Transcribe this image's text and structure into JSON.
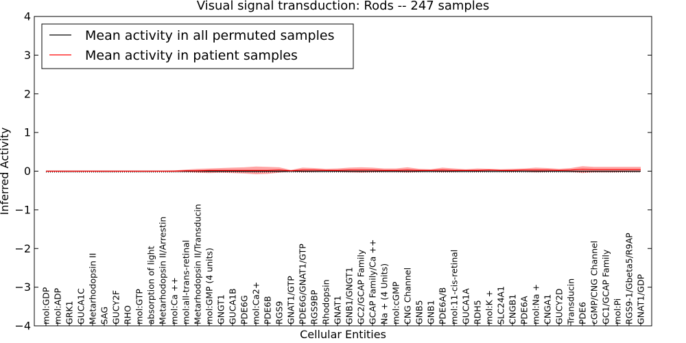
{
  "chart_data": {
    "type": "line",
    "title": "Visual signal transduction: Rods -- 247 samples",
    "xlabel": "Cellular Entities",
    "ylabel": "Inferred Activity",
    "ylim": [
      -4,
      4
    ],
    "yticks": [
      -4,
      -3,
      -2,
      -1,
      0,
      1,
      2,
      3,
      4
    ],
    "ytick_labels": [
      "−4",
      "−3",
      "−2",
      "−1",
      "0",
      "1",
      "2",
      "3",
      "4"
    ],
    "legend_position": "top-left",
    "categories": [
      "mol:GDP",
      "mol:ADP",
      "GRK1",
      "GUCA1C",
      "Metarhodopsin II",
      "SAG",
      "GUCY2F",
      "RHO",
      "mol:GTP",
      "absorption of light",
      "Metarhodopsin II/Arrestin",
      "mol:Ca ++",
      "mol:all-trans-retinal",
      "Metarhodopsin II/Transducin",
      "mol:GMP (4 units)",
      "GNGT1",
      "GUCA1B",
      "PDE6G",
      "mol:Ca2+",
      "PDE6B",
      "RGS9",
      "GNAT1/GTP",
      "PDE6G/GNAT1/GTP",
      "RGS9BP",
      "Rhodopsin",
      "GNAT1",
      "GNB1/GNGT1",
      "GC2/GCAP Family",
      "GCAP Family/Ca ++",
      "Na + (4 Units)",
      "mol:cGMP",
      "CNG Channel",
      "GNB5",
      "GNB1",
      "PDE6A/B",
      "mol:11-cis-retinal",
      "GUCA1A",
      "RDH5",
      "mol:K +",
      "SLC24A1",
      "CNGB1",
      "PDE6A",
      "mol:Na +",
      "CNGA1",
      "GUCY2D",
      "Transducin",
      "PDE6",
      "cGMP/CNG Channel",
      "GC1/GCAP Family",
      "mol:Pi",
      "RGS9-1/Gbeta5/R9AP",
      "GNAT1/GDP"
    ],
    "series": [
      {
        "name": "Mean activity in all permuted samples",
        "color": "#000000",
        "style": "solid",
        "values": [
          0.0,
          0.0,
          0.0,
          0.0,
          0.0,
          0.0,
          0.0,
          0.0,
          0.0,
          0.0,
          0.0,
          0.0,
          0.0,
          0.0,
          0.0,
          0.0,
          0.0,
          0.0,
          0.0,
          0.0,
          0.0,
          0.0,
          0.0,
          0.0,
          0.0,
          0.0,
          0.0,
          0.0,
          0.0,
          0.0,
          0.0,
          0.0,
          0.0,
          0.0,
          0.0,
          0.0,
          0.0,
          0.0,
          0.0,
          0.0,
          0.0,
          0.0,
          0.0,
          0.0,
          0.0,
          0.0,
          0.0,
          0.0,
          0.0,
          0.0,
          0.0,
          0.0
        ]
      },
      {
        "name": "Mean activity in patient samples",
        "color": "#ff0000",
        "style": "solid",
        "values": [
          0.0,
          0.0,
          0.0,
          0.0,
          0.0,
          0.0,
          0.0,
          0.0,
          0.0,
          0.0,
          0.0,
          0.0,
          0.01,
          0.01,
          0.02,
          0.02,
          0.02,
          0.02,
          0.02,
          0.02,
          0.03,
          0.01,
          0.03,
          0.03,
          0.02,
          0.02,
          0.03,
          0.03,
          0.03,
          0.02,
          0.02,
          0.03,
          0.02,
          0.02,
          0.03,
          0.02,
          0.02,
          0.02,
          0.03,
          0.02,
          0.02,
          0.03,
          0.03,
          0.03,
          0.02,
          0.03,
          0.05,
          0.04,
          0.04,
          0.04,
          0.04,
          0.04
        ],
        "band_upper": [
          0.01,
          0.01,
          0.01,
          0.01,
          0.01,
          0.01,
          0.01,
          0.01,
          0.01,
          0.01,
          0.01,
          0.02,
          0.04,
          0.06,
          0.07,
          0.08,
          0.09,
          0.1,
          0.12,
          0.11,
          0.1,
          0.03,
          0.09,
          0.08,
          0.06,
          0.07,
          0.09,
          0.1,
          0.09,
          0.07,
          0.07,
          0.1,
          0.06,
          0.05,
          0.09,
          0.07,
          0.05,
          0.07,
          0.06,
          0.05,
          0.06,
          0.07,
          0.09,
          0.08,
          0.06,
          0.08,
          0.13,
          0.11,
          0.11,
          0.11,
          0.11,
          0.11
        ],
        "band_lower": [
          -0.01,
          -0.01,
          -0.01,
          -0.01,
          -0.01,
          -0.01,
          -0.01,
          -0.01,
          -0.01,
          -0.01,
          -0.01,
          -0.01,
          -0.02,
          -0.04,
          -0.05,
          -0.04,
          -0.05,
          -0.06,
          -0.08,
          -0.07,
          -0.04,
          -0.01,
          -0.03,
          -0.02,
          -0.01,
          -0.02,
          -0.03,
          -0.04,
          -0.03,
          -0.02,
          -0.02,
          -0.04,
          -0.02,
          -0.01,
          -0.03,
          -0.02,
          -0.01,
          -0.02,
          -0.01,
          -0.01,
          -0.02,
          -0.01,
          -0.03,
          -0.02,
          -0.01,
          -0.02,
          -0.05,
          -0.03,
          -0.03,
          -0.03,
          -0.02,
          -0.02
        ]
      }
    ]
  }
}
